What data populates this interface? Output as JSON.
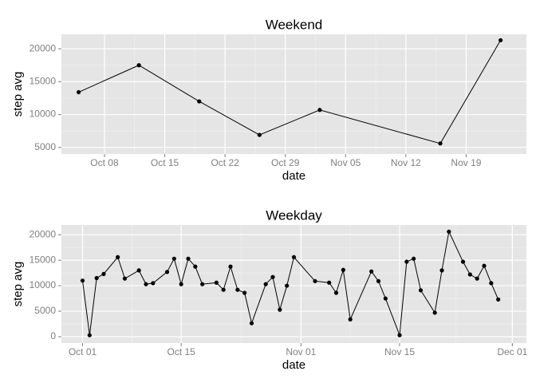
{
  "chart_data": [
    {
      "type": "line",
      "title": "Weekend",
      "x_label": "date",
      "y_label": "step avg",
      "x": [
        "10-05",
        "10-12",
        "10-19",
        "10-26",
        "11-02",
        "11-16",
        "11-23"
      ],
      "values": [
        13400,
        17500,
        12000,
        6900,
        10700,
        5600,
        21300
      ],
      "color": "#000000",
      "markers": true,
      "grid": true,
      "xlim": [
        "10-03",
        "11-26"
      ],
      "xticks": [
        {
          "value": "10-08",
          "label": "Oct 08"
        },
        {
          "value": "10-15",
          "label": "Oct 15"
        },
        {
          "value": "10-22",
          "label": "Oct 22"
        },
        {
          "value": "10-29",
          "label": "Oct 29"
        },
        {
          "value": "11-05",
          "label": "Nov 05"
        },
        {
          "value": "11-12",
          "label": "Nov 12"
        },
        {
          "value": "11-19",
          "label": "Nov 19"
        }
      ],
      "ylim": [
        4000,
        22200
      ],
      "yticks": [
        5000,
        10000,
        15000,
        20000
      ]
    },
    {
      "type": "line",
      "title": "Weekday",
      "x_label": "date",
      "y_label": "step avg",
      "x": [
        "10-01",
        "10-02",
        "10-03",
        "10-04",
        "10-06",
        "10-07",
        "10-09",
        "10-10",
        "10-11",
        "10-13",
        "10-14",
        "10-15",
        "10-16",
        "10-17",
        "10-18",
        "10-20",
        "10-21",
        "10-22",
        "10-23",
        "10-24",
        "10-25",
        "10-27",
        "10-28",
        "10-29",
        "10-30",
        "10-31",
        "11-03",
        "11-05",
        "11-06",
        "11-07",
        "11-08",
        "11-11",
        "11-12",
        "11-13",
        "11-15",
        "11-16",
        "11-17",
        "11-18",
        "11-20",
        "11-21",
        "11-22",
        "11-24",
        "11-25",
        "11-26",
        "11-27",
        "11-28",
        "11-29"
      ],
      "values": [
        11000,
        300,
        11500,
        12300,
        15600,
        11400,
        13000,
        10300,
        10500,
        12700,
        15300,
        10300,
        15300,
        13750,
        10300,
        10600,
        9200,
        13750,
        9200,
        8600,
        2650,
        10300,
        11700,
        5300,
        10000,
        15600,
        10900,
        10600,
        8600,
        13100,
        3400,
        12800,
        10900,
        7500,
        300,
        14700,
        15300,
        9100,
        4700,
        13000,
        20600,
        14700,
        12200,
        11400,
        13900,
        10500,
        7300
      ],
      "color": "#000000",
      "markers": true,
      "grid": true,
      "xlim": [
        "09-28",
        "12-03"
      ],
      "xticks": [
        {
          "value": "10-01",
          "label": "Oct 01"
        },
        {
          "value": "10-15",
          "label": "Oct 15"
        },
        {
          "value": "11-01",
          "label": "Nov 01"
        },
        {
          "value": "11-15",
          "label": "Nov 15"
        },
        {
          "value": "12-01",
          "label": "Dec 01"
        }
      ],
      "ylim": [
        -1250,
        21900
      ],
      "yticks": [
        0,
        5000,
        10000,
        15000,
        20000
      ]
    }
  ]
}
